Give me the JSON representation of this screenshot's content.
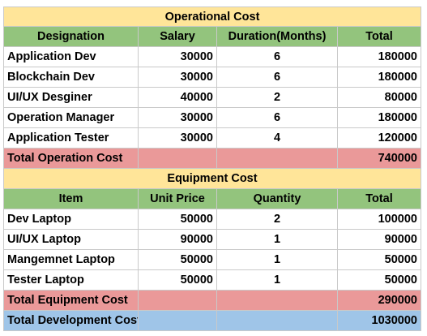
{
  "operational": {
    "title": "Operational Cost",
    "headers": [
      "Designation",
      "Salary",
      "Duration(Months)",
      "Total"
    ],
    "rows": [
      [
        "Application Dev",
        "30000",
        "6",
        "180000"
      ],
      [
        "Blockchain Dev",
        "30000",
        "6",
        "180000"
      ],
      [
        "UI/UX Desginer",
        "40000",
        "2",
        "80000"
      ],
      [
        "Operation Manager",
        "30000",
        "6",
        "180000"
      ],
      [
        "Application Tester",
        "30000",
        "4",
        "120000"
      ]
    ],
    "total_label": "Total Operation  Cost",
    "total_value": "740000"
  },
  "equipment": {
    "title": "Equipment Cost",
    "headers": [
      "Item",
      "Unit Price",
      "Quantity",
      "Total"
    ],
    "rows": [
      [
        "Dev Laptop",
        "50000",
        "2",
        "100000"
      ],
      [
        "UI/UX Laptop",
        "90000",
        "1",
        "90000"
      ],
      [
        "Mangemnet Laptop",
        "50000",
        "1",
        "50000"
      ],
      [
        "Tester Laptop",
        "50000",
        "1",
        "50000"
      ]
    ],
    "total_label": "Total Equipment Cost",
    "total_value": "290000"
  },
  "grand_total": {
    "label": "Total Development Cost",
    "value": "1030000"
  },
  "colors": {
    "title_bg": "#ffe599",
    "header_bg": "#93c47d",
    "section_total_bg": "#ea9999",
    "grand_total_bg": "#9fc5e8"
  }
}
